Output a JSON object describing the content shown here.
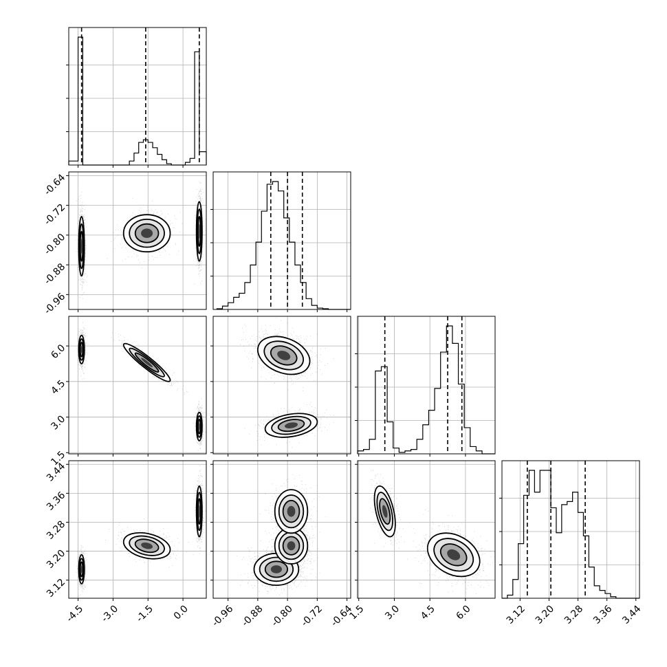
{
  "chart_data": {
    "type": "corner",
    "title": "",
    "parameters": [
      {
        "ticks": [
          "-4.5",
          "-3.0",
          "-1.5",
          "0.0"
        ],
        "range": [
          -4.9,
          1.0
        ],
        "quantiles": [
          -4.35,
          -1.6,
          0.7
        ]
      },
      {
        "ticks": [
          "-0.96",
          "-0.88",
          "-0.80",
          "-0.72",
          "-0.64"
        ],
        "range": [
          -1.0,
          -0.63
        ],
        "quantiles": [
          -0.845,
          -0.8,
          -0.76
        ]
      },
      {
        "ticks": [
          "1.5",
          "3.0",
          "4.5",
          "6.0"
        ],
        "range": [
          1.45,
          7.25
        ],
        "quantiles": [
          2.6,
          5.25,
          5.85
        ]
      },
      {
        "ticks": [
          "3.12",
          "3.20",
          "3.28",
          "3.36",
          "3.44"
        ],
        "range": [
          3.07,
          3.45
        ],
        "quantiles": [
          3.14,
          3.205,
          3.3
        ]
      }
    ],
    "histograms": [
      {
        "param": 0,
        "edges": [
          -4.9,
          -4.7,
          -4.5,
          -4.3,
          -4.1,
          -3.9,
          -3.7,
          -3.5,
          -3.3,
          -3.1,
          -2.9,
          -2.7,
          -2.5,
          -2.3,
          -2.1,
          -1.9,
          -1.7,
          -1.5,
          -1.3,
          -1.1,
          -0.9,
          -0.7,
          -0.5,
          -0.3,
          -0.1,
          0.1,
          0.3,
          0.5,
          0.7,
          0.9,
          1.0
        ],
        "counts": [
          0.03,
          0.03,
          0.96,
          0.0,
          0.0,
          0.0,
          0.0,
          0.0,
          0.0,
          0.0,
          0.0,
          0.0,
          0.0,
          0.03,
          0.09,
          0.17,
          0.19,
          0.17,
          0.13,
          0.08,
          0.04,
          0.01,
          0.0,
          0.0,
          0.0,
          0.02,
          0.05,
          0.85,
          0.1,
          0.1
        ]
      },
      {
        "param": 1,
        "edges": [
          -0.99,
          -0.975,
          -0.96,
          -0.945,
          -0.93,
          -0.915,
          -0.9,
          -0.885,
          -0.87,
          -0.855,
          -0.84,
          -0.825,
          -0.81,
          -0.795,
          -0.78,
          -0.765,
          -0.75,
          -0.735,
          -0.72,
          -0.705,
          -0.69,
          -0.675,
          -0.66,
          -0.645,
          -0.63
        ],
        "counts": [
          0.005,
          0.025,
          0.05,
          0.09,
          0.12,
          0.2,
          0.33,
          0.5,
          0.73,
          0.93,
          0.95,
          0.88,
          0.68,
          0.5,
          0.33,
          0.2,
          0.08,
          0.03,
          0.01,
          0.005,
          0.0,
          0.0,
          0.0,
          0.0
        ]
      },
      {
        "param": 2,
        "edges": [
          1.45,
          1.7,
          1.95,
          2.2,
          2.45,
          2.7,
          2.95,
          3.2,
          3.45,
          3.7,
          3.95,
          4.2,
          4.45,
          4.7,
          4.95,
          5.2,
          5.45,
          5.7,
          5.95,
          6.2,
          6.45,
          6.7,
          6.95,
          7.25
        ],
        "counts": [
          0.02,
          0.03,
          0.1,
          0.57,
          0.6,
          0.22,
          0.04,
          0.01,
          0.02,
          0.03,
          0.1,
          0.2,
          0.3,
          0.45,
          0.7,
          0.88,
          0.76,
          0.48,
          0.18,
          0.05,
          0.02,
          0.0,
          0.0
        ]
      },
      {
        "param": 3,
        "edges": [
          3.07,
          3.085,
          3.1,
          3.115,
          3.13,
          3.145,
          3.16,
          3.175,
          3.19,
          3.205,
          3.22,
          3.235,
          3.25,
          3.265,
          3.28,
          3.295,
          3.31,
          3.325,
          3.34,
          3.355,
          3.37,
          3.385,
          3.4,
          3.415,
          3.43,
          3.45
        ],
        "counts": [
          0.0,
          0.02,
          0.12,
          0.35,
          0.66,
          0.82,
          0.68,
          0.82,
          0.82,
          0.58,
          0.42,
          0.6,
          0.62,
          0.68,
          0.55,
          0.4,
          0.2,
          0.08,
          0.05,
          0.03,
          0.01,
          0.0,
          0.0,
          0.0,
          0.0
        ]
      }
    ],
    "clusters": [
      {
        "param": [
          0,
          1
        ],
        "modes": [
          {
            "x": -4.35,
            "y": -0.83,
            "sx": 0.06,
            "sy": 0.04,
            "rho": 0.0,
            "w": 1.0
          },
          {
            "x": -1.55,
            "y": -0.795,
            "sx": 0.5,
            "sy": 0.025,
            "rho": 0.0,
            "w": 0.5
          },
          {
            "x": 0.7,
            "y": -0.79,
            "sx": 0.06,
            "sy": 0.04,
            "rho": 0.0,
            "w": 1.0
          }
        ]
      },
      {
        "param": [
          0,
          2
        ],
        "modes": [
          {
            "x": -4.35,
            "y": 5.85,
            "sx": 0.06,
            "sy": 0.3,
            "rho": 0.0,
            "w": 1.0
          },
          {
            "x": -1.55,
            "y": 5.3,
            "sx": 0.5,
            "sy": 0.4,
            "rho": -0.93,
            "w": 0.5
          },
          {
            "x": 0.7,
            "y": 2.6,
            "sx": 0.06,
            "sy": 0.3,
            "rho": 0.0,
            "w": 1.0
          }
        ]
      },
      {
        "param": [
          1,
          2
        ],
        "modes": [
          {
            "x": -0.81,
            "y": 5.6,
            "sx": 0.035,
            "sy": 0.4,
            "rho": -0.3,
            "w": 1.0
          },
          {
            "x": -0.79,
            "y": 2.65,
            "sx": 0.035,
            "sy": 0.25,
            "rho": 0.3,
            "w": 0.6
          }
        ]
      },
      {
        "param": [
          0,
          3
        ],
        "modes": [
          {
            "x": -4.35,
            "y": 3.15,
            "sx": 0.06,
            "sy": 0.02,
            "rho": 0.0,
            "w": 1.0
          },
          {
            "x": -1.55,
            "y": 3.215,
            "sx": 0.5,
            "sy": 0.018,
            "rho": -0.3,
            "w": 0.5
          },
          {
            "x": 0.7,
            "y": 3.31,
            "sx": 0.06,
            "sy": 0.035,
            "rho": 0.0,
            "w": 1.0
          }
        ]
      },
      {
        "param": [
          1,
          3
        ],
        "modes": [
          {
            "x": -0.83,
            "y": 3.15,
            "sx": 0.03,
            "sy": 0.022,
            "rho": 0.0,
            "w": 1.0
          },
          {
            "x": -0.79,
            "y": 3.215,
            "sx": 0.022,
            "sy": 0.025,
            "rho": 0.0,
            "w": 0.9
          },
          {
            "x": -0.79,
            "y": 3.31,
            "sx": 0.022,
            "sy": 0.03,
            "rho": 0.0,
            "w": 0.6
          }
        ]
      },
      {
        "param": [
          2,
          3
        ],
        "modes": [
          {
            "x": 2.6,
            "y": 3.31,
            "sx": 0.22,
            "sy": 0.035,
            "rho": -0.5,
            "w": 0.6
          },
          {
            "x": 5.5,
            "y": 3.19,
            "sx": 0.55,
            "sy": 0.03,
            "rho": -0.3,
            "w": 1.0
          }
        ]
      }
    ],
    "grid": true
  }
}
